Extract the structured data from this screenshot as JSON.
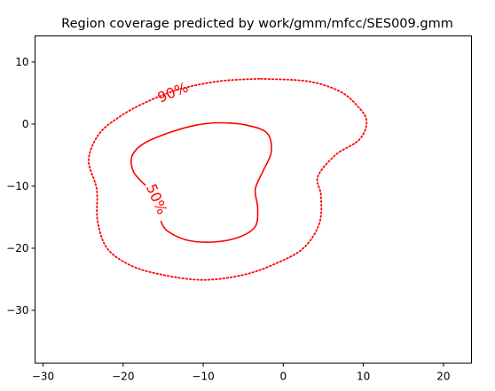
{
  "chart_data": {
    "type": "contour",
    "title": "Region coverage predicted by work/gmm/mfcc/SES009.gmm",
    "xlabel": "",
    "ylabel": "",
    "xlim": [
      -31,
      23.5
    ],
    "ylim": [
      -38.5,
      14.2
    ],
    "xticks": [
      -30,
      -20,
      -10,
      0,
      10,
      20
    ],
    "yticks": [
      10,
      0,
      -10,
      -20,
      -30
    ],
    "grid": false,
    "color": "#ff0000",
    "contours": [
      {
        "label": "90%",
        "style": "dotted",
        "points": [
          [
            -3,
            7.3
          ],
          [
            -8,
            6.9
          ],
          [
            -13,
            5.6
          ],
          [
            -17,
            3.6
          ],
          [
            -20.3,
            1.3
          ],
          [
            -23,
            -1.6
          ],
          [
            -24.3,
            -5.8
          ],
          [
            -23.3,
            -10.5
          ],
          [
            -23.2,
            -15.5
          ],
          [
            -22,
            -20
          ],
          [
            -19,
            -22.8
          ],
          [
            -15,
            -24.3
          ],
          [
            -10,
            -25.1
          ],
          [
            -5,
            -24.3
          ],
          [
            -1,
            -22.5
          ],
          [
            2.5,
            -20
          ],
          [
            4.5,
            -16
          ],
          [
            4.7,
            -11.5
          ],
          [
            4.3,
            -8.5
          ],
          [
            6.5,
            -5
          ],
          [
            9.5,
            -2.5
          ],
          [
            10.4,
            0.5
          ],
          [
            9.2,
            3
          ],
          [
            7,
            5.3
          ],
          [
            3,
            6.9
          ],
          [
            -3,
            7.3
          ]
        ]
      },
      {
        "label": "50%",
        "style": "solid",
        "points": [
          [
            -17.2,
            -9.9
          ],
          [
            -18.7,
            -7.7
          ],
          [
            -18.9,
            -5.2
          ],
          [
            -17.5,
            -3.2
          ],
          [
            -14.5,
            -1.5
          ],
          [
            -11,
            -0.2
          ],
          [
            -8,
            0.2
          ],
          [
            -4.5,
            -0.2
          ],
          [
            -2,
            -1.5
          ],
          [
            -1.5,
            -4.5
          ],
          [
            -2.5,
            -7.5
          ],
          [
            -3.5,
            -10.5
          ],
          [
            -3.2,
            -13.5
          ],
          [
            -3.5,
            -16.5
          ],
          [
            -5.5,
            -18.2
          ],
          [
            -8.7,
            -19
          ],
          [
            -12,
            -18.7
          ],
          [
            -14.5,
            -17.2
          ],
          [
            -15.3,
            -15.6
          ]
        ]
      }
    ]
  }
}
